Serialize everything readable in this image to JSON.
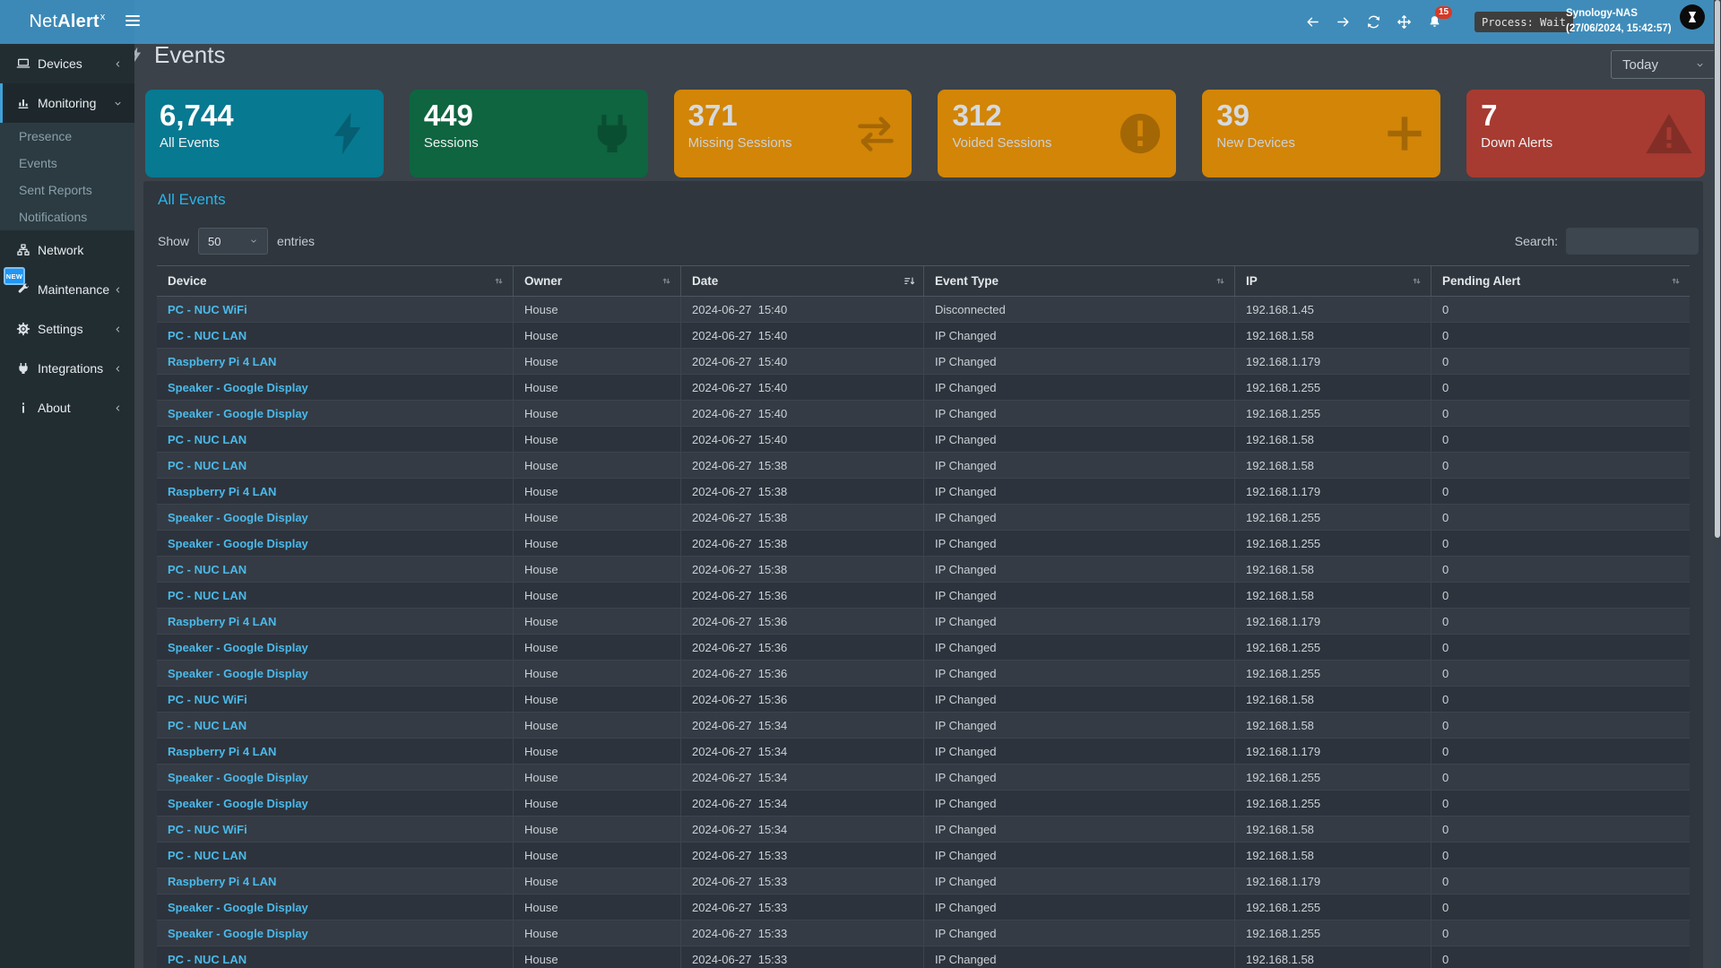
{
  "navbar": {
    "brand": {
      "prefix": "Net",
      "bold": "Alert",
      "sup": "x"
    },
    "actions": [
      {
        "name": "back",
        "icon": "arrow-left"
      },
      {
        "name": "forward",
        "icon": "arrow-right"
      },
      {
        "name": "refresh",
        "icon": "refresh"
      },
      {
        "name": "pan",
        "icon": "move"
      },
      {
        "name": "notifications",
        "icon": "bell",
        "badge": "15"
      }
    ],
    "process_status": "Process: Wait",
    "host_name": "Synology-NAS",
    "host_timestamp": "(27/06/2024, 15:42:57)"
  },
  "sidebar": {
    "new_feature_badge": "NEW",
    "items": [
      {
        "label": "Devices",
        "icon": "laptop",
        "chevron": "left"
      },
      {
        "label": "Monitoring",
        "icon": "monitoring",
        "chevron": "down",
        "active": true,
        "children": [
          "Presence",
          "Events",
          "Sent Reports",
          "Notifications"
        ]
      },
      {
        "label": "Network",
        "icon": "network"
      },
      {
        "label": "Maintenance",
        "icon": "wrench",
        "chevron": "left",
        "has_new_badge": true
      },
      {
        "label": "Settings",
        "icon": "gear",
        "chevron": "left"
      },
      {
        "label": "Integrations",
        "icon": "plug",
        "chevron": "left"
      },
      {
        "label": "About",
        "icon": "info",
        "chevron": "left"
      }
    ]
  },
  "page": {
    "title": "Events",
    "title_icon": "bolt",
    "period_selector": "Today"
  },
  "summary_cards": [
    {
      "value": "6,744",
      "label": "All Events",
      "icon": "bolt",
      "color": "#077991",
      "tone": "light"
    },
    {
      "value": "449",
      "label": "Sessions",
      "icon": "plug",
      "color": "#0e6540",
      "tone": "light"
    },
    {
      "value": "371",
      "label": "Missing Sessions",
      "icon": "exchange",
      "color": "#d28507",
      "tone": "muted"
    },
    {
      "value": "312",
      "label": "Voided Sessions",
      "icon": "exclamation-circle",
      "color": "#d28507",
      "tone": "muted"
    },
    {
      "value": "39",
      "label": "New Devices",
      "icon": "plus",
      "color": "#d28507",
      "tone": "muted"
    },
    {
      "value": "7",
      "label": "Down Alerts",
      "icon": "warning-triangle",
      "color": "#a73b31",
      "tone": "light"
    }
  ],
  "events_table": {
    "title": "All Events",
    "length_menu": {
      "prefix": "Show",
      "value": "50",
      "suffix": "entries"
    },
    "search_label": "Search:",
    "search_value": "",
    "columns": [
      {
        "label": "Device",
        "sort": "both"
      },
      {
        "label": "Owner",
        "sort": "both"
      },
      {
        "label": "Date",
        "sort": "active"
      },
      {
        "label": "Event Type",
        "sort": "both"
      },
      {
        "label": "IP",
        "sort": "both"
      },
      {
        "label": "Pending Alert",
        "sort": "both"
      }
    ],
    "rows": [
      [
        "PC - NUC WiFi",
        "House",
        "2024-06-27",
        "15:40",
        "Disconnected",
        "192.168.1.45",
        "0"
      ],
      [
        "PC - NUC LAN",
        "House",
        "2024-06-27",
        "15:40",
        "IP Changed",
        "192.168.1.58",
        "0"
      ],
      [
        "Raspberry Pi 4 LAN",
        "House",
        "2024-06-27",
        "15:40",
        "IP Changed",
        "192.168.1.179",
        "0"
      ],
      [
        "Speaker - Google Display",
        "House",
        "2024-06-27",
        "15:40",
        "IP Changed",
        "192.168.1.255",
        "0"
      ],
      [
        "Speaker - Google Display",
        "House",
        "2024-06-27",
        "15:40",
        "IP Changed",
        "192.168.1.255",
        "0"
      ],
      [
        "PC - NUC LAN",
        "House",
        "2024-06-27",
        "15:40",
        "IP Changed",
        "192.168.1.58",
        "0"
      ],
      [
        "PC - NUC LAN",
        "House",
        "2024-06-27",
        "15:38",
        "IP Changed",
        "192.168.1.58",
        "0"
      ],
      [
        "Raspberry Pi 4 LAN",
        "House",
        "2024-06-27",
        "15:38",
        "IP Changed",
        "192.168.1.179",
        "0"
      ],
      [
        "Speaker - Google Display",
        "House",
        "2024-06-27",
        "15:38",
        "IP Changed",
        "192.168.1.255",
        "0"
      ],
      [
        "Speaker - Google Display",
        "House",
        "2024-06-27",
        "15:38",
        "IP Changed",
        "192.168.1.255",
        "0"
      ],
      [
        "PC - NUC LAN",
        "House",
        "2024-06-27",
        "15:38",
        "IP Changed",
        "192.168.1.58",
        "0"
      ],
      [
        "PC - NUC LAN",
        "House",
        "2024-06-27",
        "15:36",
        "IP Changed",
        "192.168.1.58",
        "0"
      ],
      [
        "Raspberry Pi 4 LAN",
        "House",
        "2024-06-27",
        "15:36",
        "IP Changed",
        "192.168.1.179",
        "0"
      ],
      [
        "Speaker - Google Display",
        "House",
        "2024-06-27",
        "15:36",
        "IP Changed",
        "192.168.1.255",
        "0"
      ],
      [
        "Speaker - Google Display",
        "House",
        "2024-06-27",
        "15:36",
        "IP Changed",
        "192.168.1.255",
        "0"
      ],
      [
        "PC - NUC WiFi",
        "House",
        "2024-06-27",
        "15:36",
        "IP Changed",
        "192.168.1.58",
        "0"
      ],
      [
        "PC - NUC LAN",
        "House",
        "2024-06-27",
        "15:34",
        "IP Changed",
        "192.168.1.58",
        "0"
      ],
      [
        "Raspberry Pi 4 LAN",
        "House",
        "2024-06-27",
        "15:34",
        "IP Changed",
        "192.168.1.179",
        "0"
      ],
      [
        "Speaker - Google Display",
        "House",
        "2024-06-27",
        "15:34",
        "IP Changed",
        "192.168.1.255",
        "0"
      ],
      [
        "Speaker - Google Display",
        "House",
        "2024-06-27",
        "15:34",
        "IP Changed",
        "192.168.1.255",
        "0"
      ],
      [
        "PC - NUC WiFi",
        "House",
        "2024-06-27",
        "15:34",
        "IP Changed",
        "192.168.1.58",
        "0"
      ],
      [
        "PC - NUC LAN",
        "House",
        "2024-06-27",
        "15:33",
        "IP Changed",
        "192.168.1.58",
        "0"
      ],
      [
        "Raspberry Pi 4 LAN",
        "House",
        "2024-06-27",
        "15:33",
        "IP Changed",
        "192.168.1.179",
        "0"
      ],
      [
        "Speaker - Google Display",
        "House",
        "2024-06-27",
        "15:33",
        "IP Changed",
        "192.168.1.255",
        "0"
      ],
      [
        "Speaker - Google Display",
        "House",
        "2024-06-27",
        "15:33",
        "IP Changed",
        "192.168.1.255",
        "0"
      ],
      [
        "PC - NUC LAN",
        "House",
        "2024-06-27",
        "15:33",
        "IP Changed",
        "192.168.1.58",
        "0"
      ]
    ]
  }
}
